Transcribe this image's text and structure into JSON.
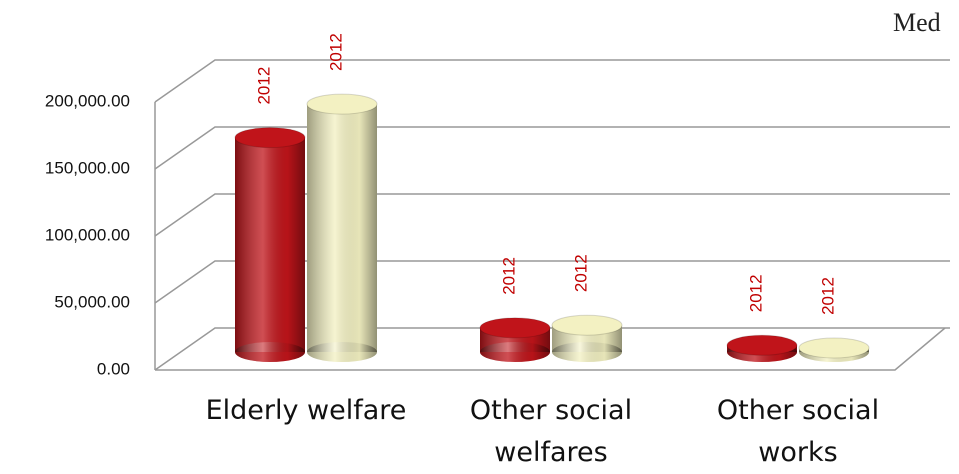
{
  "chart_data": {
    "type": "bar3d",
    "title": "Med",
    "categories": [
      "Elderly welfare",
      "Other social welfares",
      "Other social works"
    ],
    "series": [
      {
        "name": "2012",
        "color": "#c0141a",
        "values": [
          160000,
          18000,
          5000
        ]
      },
      {
        "name": "2012",
        "color": "#f3f1c2",
        "values": [
          185000,
          20000,
          3000
        ]
      }
    ],
    "ylim": [
      0,
      200000
    ],
    "yticks": [
      {
        "value": 0,
        "label": "0.00"
      },
      {
        "value": 50000,
        "label": "50,000.00"
      },
      {
        "value": 100000,
        "label": "100,000.00"
      },
      {
        "value": 150000,
        "label": "150,000.00"
      },
      {
        "value": 200000,
        "label": "200,000.00"
      }
    ],
    "grid": true,
    "legend": false
  }
}
